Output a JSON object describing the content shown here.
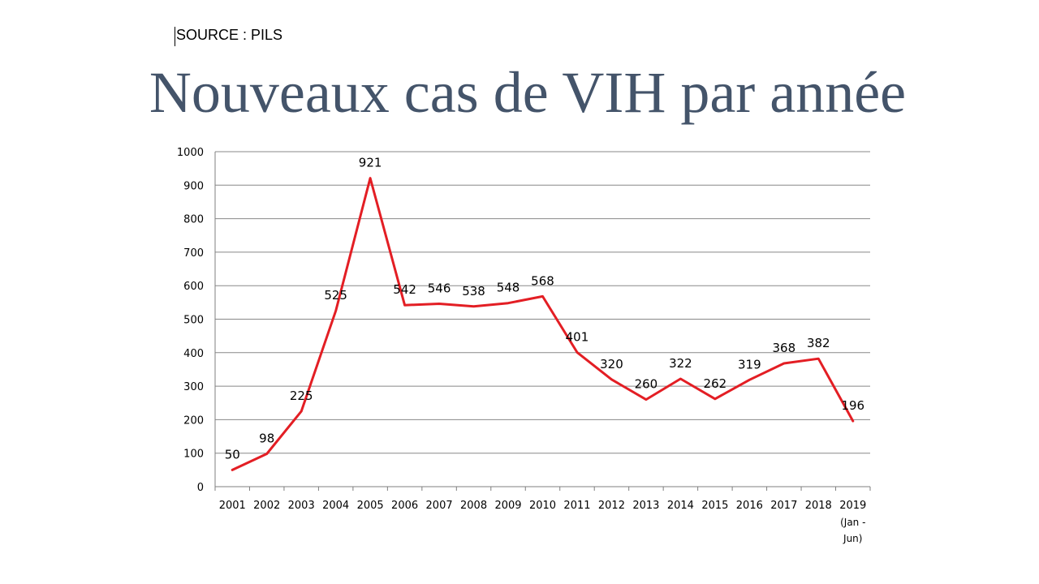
{
  "source": "SOURCE : PILS",
  "colors": {
    "line": "#e31e24",
    "title": "#44546a",
    "grid": "#888888",
    "axis": "#7f7f7f"
  },
  "chart_data": {
    "type": "line",
    "title": "Nouveaux cas de VIH par année",
    "xlabel": "",
    "ylabel": "",
    "ylim": [
      0,
      1000
    ],
    "yticks": [
      "0",
      "100",
      "200",
      "300",
      "400",
      "500",
      "600",
      "700",
      "800",
      "900",
      "1000"
    ],
    "categories": [
      "2001",
      "2002",
      "2003",
      "2004",
      "2005",
      "2006",
      "2007",
      "2008",
      "2009",
      "2010",
      "2011",
      "2012",
      "2013",
      "2014",
      "2015",
      "2016",
      "2017",
      "2018",
      "2019"
    ],
    "category_notes": {
      "2019": [
        "(Jan -",
        "Jun)"
      ]
    },
    "grid": true,
    "legend": "none",
    "series": [
      {
        "name": "Nouveaux cas de VIH",
        "values": [
          50,
          98,
          225,
          525,
          921,
          542,
          546,
          538,
          548,
          568,
          401,
          320,
          260,
          322,
          262,
          319,
          368,
          382,
          196
        ]
      }
    ]
  }
}
